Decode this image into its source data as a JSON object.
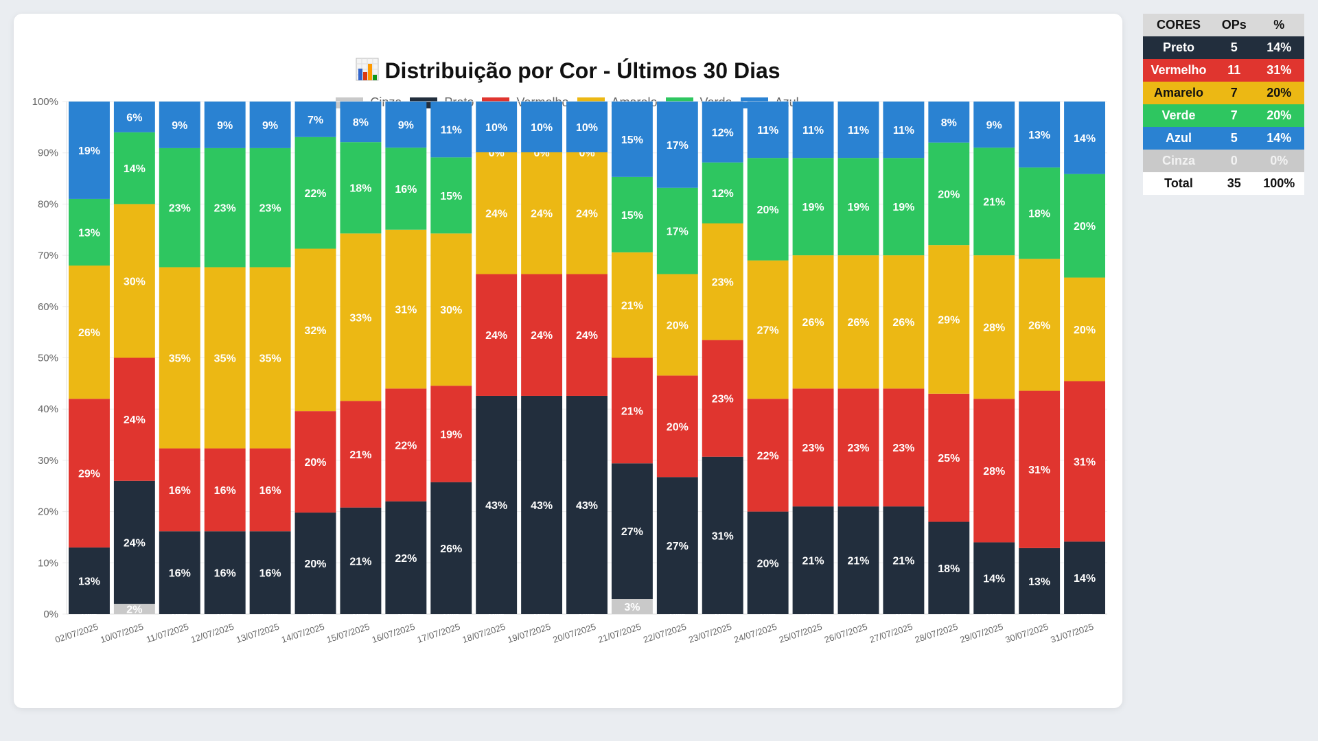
{
  "header": {
    "title_icon": "bar-chart-icon",
    "title": "Distribuição por Cor - Últimos 30 Dias"
  },
  "colors": {
    "Cinza": "#c9c9c9",
    "Preto": "#222e3d",
    "Vermelho": "#e0352f",
    "Amarelo": "#ecb814",
    "Verde": "#2ec660",
    "Azul": "#2a82d2"
  },
  "summary_table": {
    "headers": [
      "CORES",
      "OPs",
      "%"
    ],
    "rows": [
      {
        "color": "Preto",
        "ops": "5",
        "pct": "14%",
        "bg": "#222e3d",
        "fg": "#ffffff"
      },
      {
        "color": "Vermelho",
        "ops": "11",
        "pct": "31%",
        "bg": "#e0352f",
        "fg": "#ffffff"
      },
      {
        "color": "Amarelo",
        "ops": "7",
        "pct": "20%",
        "bg": "#ecb814",
        "fg": "#111111"
      },
      {
        "color": "Verde",
        "ops": "7",
        "pct": "20%",
        "bg": "#2ec660",
        "fg": "#ffffff"
      },
      {
        "color": "Azul",
        "ops": "5",
        "pct": "14%",
        "bg": "#2a82d2",
        "fg": "#ffffff"
      },
      {
        "color": "Cinza",
        "ops": "0",
        "pct": "0%",
        "bg": "#c9c9c9",
        "fg": "#f2f2f2"
      }
    ],
    "total": {
      "label": "Total",
      "ops": "35",
      "pct": "100%"
    }
  },
  "chart_data": {
    "type": "bar",
    "stacked": true,
    "title": "Distribuição por Cor - Últimos 30 Dias",
    "xlabel": "",
    "ylabel": "",
    "ylim": [
      0,
      100
    ],
    "yticks": [
      "0%",
      "10%",
      "20%",
      "30%",
      "40%",
      "50%",
      "60%",
      "70%",
      "80%",
      "90%",
      "100%"
    ],
    "legend_position": "top",
    "grid": true,
    "categories": [
      "02/07/2025",
      "10/07/2025",
      "11/07/2025",
      "12/07/2025",
      "13/07/2025",
      "14/07/2025",
      "15/07/2025",
      "16/07/2025",
      "17/07/2025",
      "18/07/2025",
      "19/07/2025",
      "20/07/2025",
      "21/07/2025",
      "22/07/2025",
      "23/07/2025",
      "24/07/2025",
      "25/07/2025",
      "26/07/2025",
      "27/07/2025",
      "28/07/2025",
      "29/07/2025",
      "30/07/2025",
      "31/07/2025"
    ],
    "series": [
      {
        "name": "Cinza",
        "values": [
          0,
          2,
          0,
          0,
          0,
          0,
          0,
          0,
          0,
          0,
          0,
          0,
          3,
          0,
          0,
          0,
          0,
          0,
          0,
          0,
          0,
          0,
          0
        ]
      },
      {
        "name": "Preto",
        "values": [
          13,
          24,
          16,
          16,
          16,
          20,
          21,
          22,
          26,
          43,
          43,
          43,
          27,
          27,
          31,
          20,
          21,
          21,
          21,
          18,
          14,
          13,
          14
        ]
      },
      {
        "name": "Vermelho",
        "values": [
          29,
          24,
          16,
          16,
          16,
          20,
          21,
          22,
          19,
          24,
          24,
          24,
          21,
          20,
          23,
          22,
          23,
          23,
          23,
          25,
          28,
          31,
          31
        ]
      },
      {
        "name": "Amarelo",
        "values": [
          26,
          30,
          35,
          35,
          35,
          32,
          33,
          31,
          30,
          24,
          24,
          24,
          21,
          20,
          23,
          27,
          26,
          26,
          26,
          29,
          28,
          26,
          20
        ]
      },
      {
        "name": "Verde",
        "values": [
          13,
          14,
          23,
          23,
          23,
          22,
          18,
          16,
          15,
          0,
          0,
          0,
          15,
          17,
          12,
          20,
          19,
          19,
          19,
          20,
          21,
          18,
          20
        ]
      },
      {
        "name": "Azul",
        "values": [
          19,
          6,
          9,
          9,
          9,
          7,
          8,
          9,
          11,
          10,
          10,
          10,
          15,
          17,
          12,
          11,
          11,
          11,
          11,
          8,
          9,
          13,
          14
        ]
      }
    ]
  }
}
